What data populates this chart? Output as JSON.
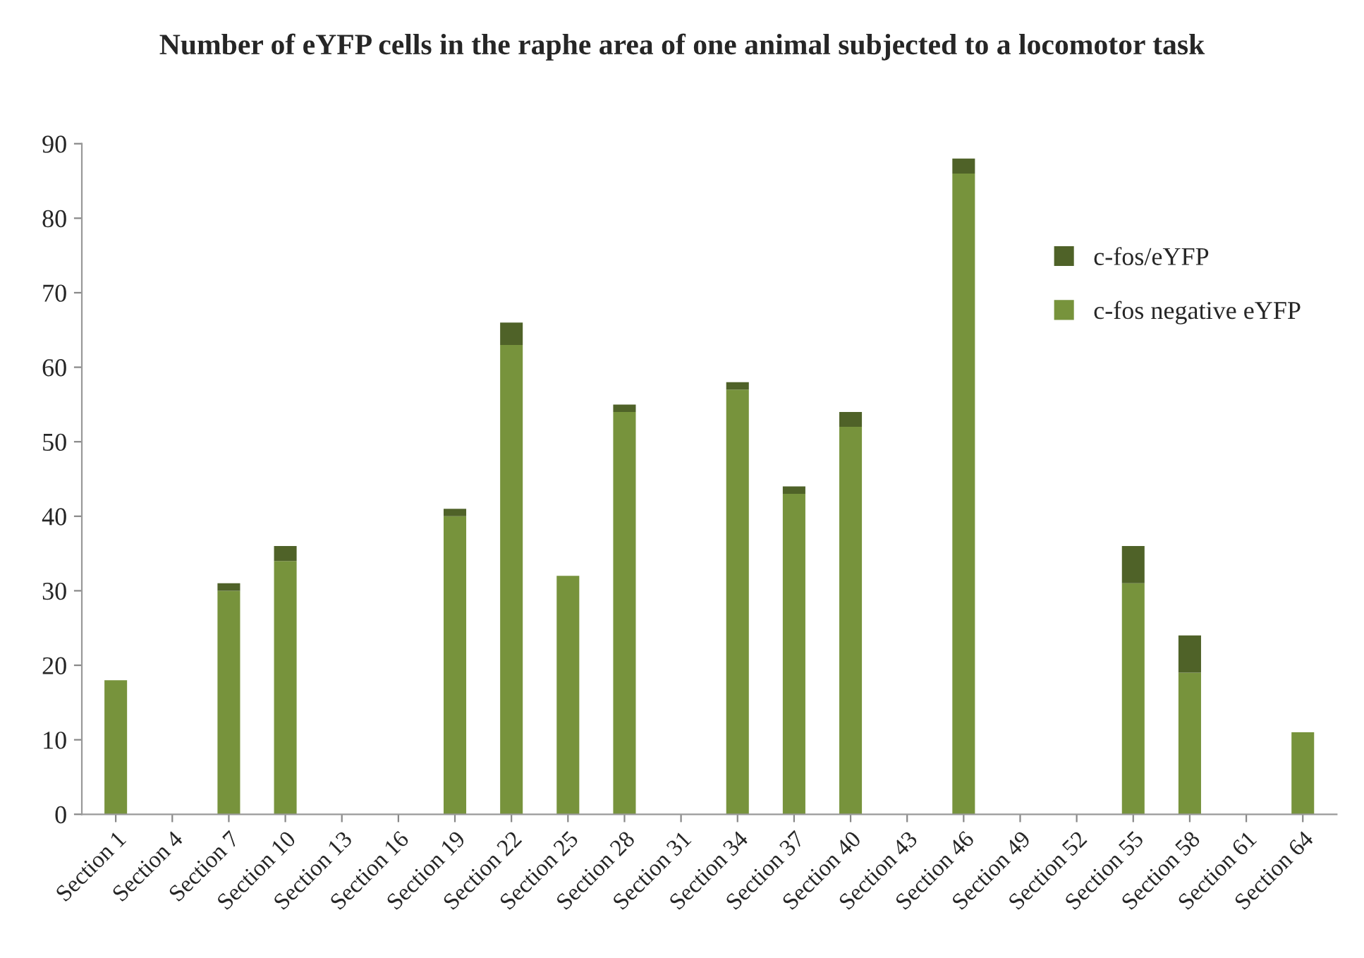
{
  "chart_data": {
    "type": "bar",
    "title": "Number of eYFP cells in the raphe area of one animal subjected to a locomotor task",
    "categories": [
      "Section 1",
      "Section 4",
      "Section 7",
      "Section 10",
      "Section 13",
      "Section 16",
      "Section 19",
      "Section 22",
      "Section 25",
      "Section 28",
      "Section 31",
      "Section 34",
      "Section 37",
      "Section 40",
      "Section 43",
      "Section 46",
      "Section 49",
      "Section 52",
      "Section 55",
      "Section 58",
      "Section 61",
      "Section 64"
    ],
    "stacked": true,
    "series": [
      {
        "name": "c-fos negative eYFP",
        "color": "#77933c",
        "values": [
          18,
          0,
          30,
          34,
          0,
          0,
          40,
          63,
          32,
          54,
          0,
          57,
          43,
          52,
          0,
          86,
          0,
          0,
          31,
          19,
          0,
          11
        ]
      },
      {
        "name": "c-fos/eYFP",
        "color": "#4f6228",
        "values": [
          0,
          0,
          1,
          2,
          0,
          0,
          1,
          3,
          0,
          1,
          0,
          1,
          1,
          2,
          0,
          2,
          0,
          0,
          5,
          5,
          0,
          0
        ]
      }
    ],
    "ylim": [
      0,
      90
    ],
    "yticks": [
      0,
      10,
      20,
      30,
      40,
      50,
      60,
      70,
      80,
      90
    ],
    "grid": false,
    "legend": "top right"
  }
}
